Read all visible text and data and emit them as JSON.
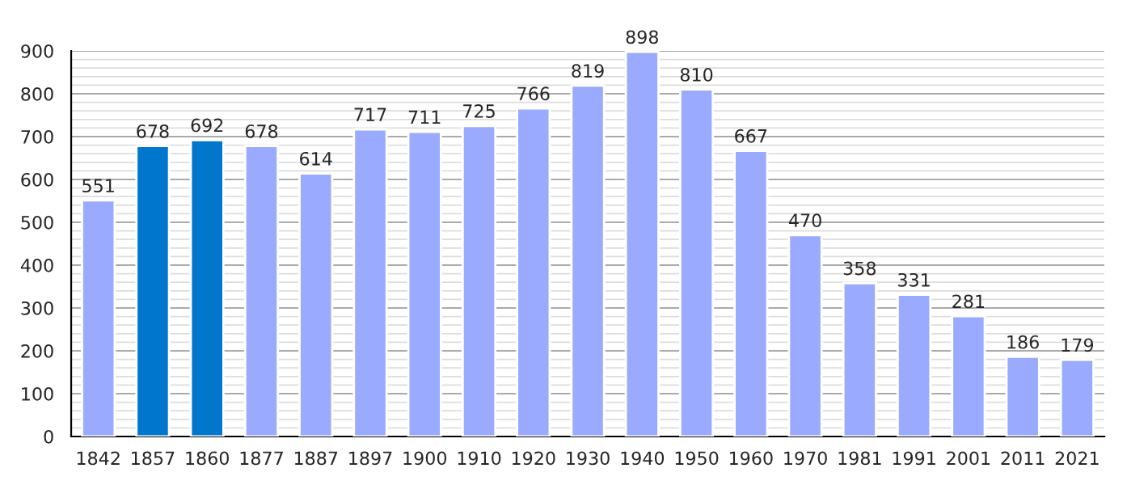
{
  "chart_data": {
    "type": "bar",
    "categories": [
      "1842",
      "1857",
      "1860",
      "1877",
      "1887",
      "1897",
      "1900",
      "1910",
      "1920",
      "1930",
      "1940",
      "1950",
      "1960",
      "1970",
      "1981",
      "1991",
      "2001",
      "2011",
      "2021"
    ],
    "values": [
      551,
      678,
      692,
      678,
      614,
      717,
      711,
      725,
      766,
      819,
      898,
      810,
      667,
      470,
      358,
      331,
      281,
      186,
      179
    ],
    "colors": [
      "#99aaff",
      "#0077cc",
      "#0077cc",
      "#99aaff",
      "#99aaff",
      "#99aaff",
      "#99aaff",
      "#99aaff",
      "#99aaff",
      "#99aaff",
      "#99aaff",
      "#99aaff",
      "#99aaff",
      "#99aaff",
      "#99aaff",
      "#99aaff",
      "#99aaff",
      "#99aaff",
      "#99aaff"
    ],
    "ylim": [
      0,
      900
    ],
    "yticks": [
      0,
      100,
      200,
      300,
      400,
      500,
      600,
      700,
      800,
      900
    ],
    "grid": "y",
    "data_labels": true
  }
}
